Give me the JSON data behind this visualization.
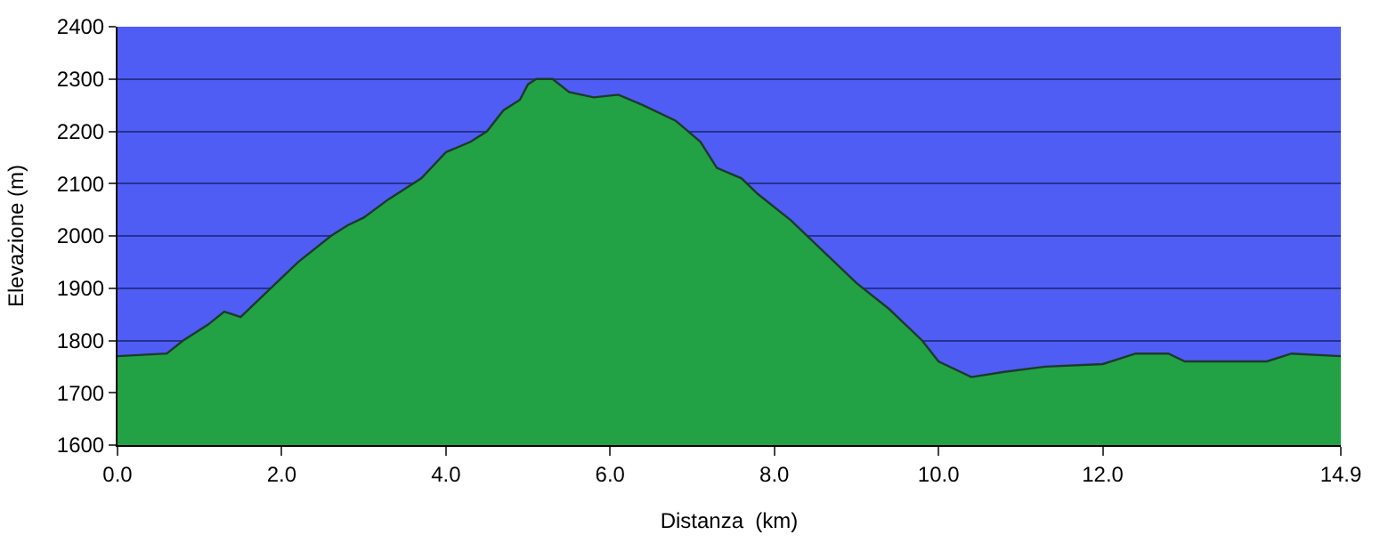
{
  "chart_data": {
    "type": "area",
    "xlabel": "Distanza  (km)",
    "ylabel": "Elevazione (m)",
    "x": [
      0,
      0.6,
      0.8,
      1.1,
      1.3,
      1.5,
      1.8,
      2.2,
      2.6,
      2.8,
      3.0,
      3.3,
      3.7,
      4.0,
      4.3,
      4.5,
      4.7,
      4.9,
      5.0,
      5.1,
      5.3,
      5.5,
      5.8,
      6.1,
      6.4,
      6.8,
      7.1,
      7.3,
      7.6,
      7.8,
      8.2,
      8.6,
      9.0,
      9.4,
      9.8,
      10.0,
      10.4,
      10.8,
      11.3,
      12.0,
      12.2,
      12.4,
      12.8,
      13.0,
      13.6,
      14.0,
      14.3,
      14.9
    ],
    "series": [
      {
        "color": "#22a244",
        "values": [
          1770,
          1775,
          1800,
          1830,
          1855,
          1845,
          1890,
          1950,
          2000,
          2020,
          2035,
          2070,
          2110,
          2160,
          2180,
          2200,
          2240,
          2260,
          2290,
          2300,
          2300,
          2275,
          2265,
          2270,
          2250,
          2220,
          2180,
          2130,
          2110,
          2080,
          2030,
          1970,
          1910,
          1860,
          1800,
          1760,
          1730,
          1740,
          1750,
          1755,
          1765,
          1775,
          1775,
          1760,
          1760,
          1760,
          1775,
          1770
        ]
      }
    ],
    "xlim": [
      0,
      14.9
    ],
    "ylim": [
      1600,
      2400
    ],
    "xticks": [
      {
        "value": 0,
        "label": "0.0"
      },
      {
        "value": 2,
        "label": "2.0"
      },
      {
        "value": 4,
        "label": "4.0"
      },
      {
        "value": 6,
        "label": "6.0"
      },
      {
        "value": 8,
        "label": "8.0"
      },
      {
        "value": 10,
        "label": "10.0"
      },
      {
        "value": 12,
        "label": "12.0"
      },
      14.9
    ],
    "yticks": [
      1600,
      1700,
      1800,
      1900,
      2000,
      2100,
      2200,
      2300,
      2400
    ],
    "grid": "y"
  }
}
